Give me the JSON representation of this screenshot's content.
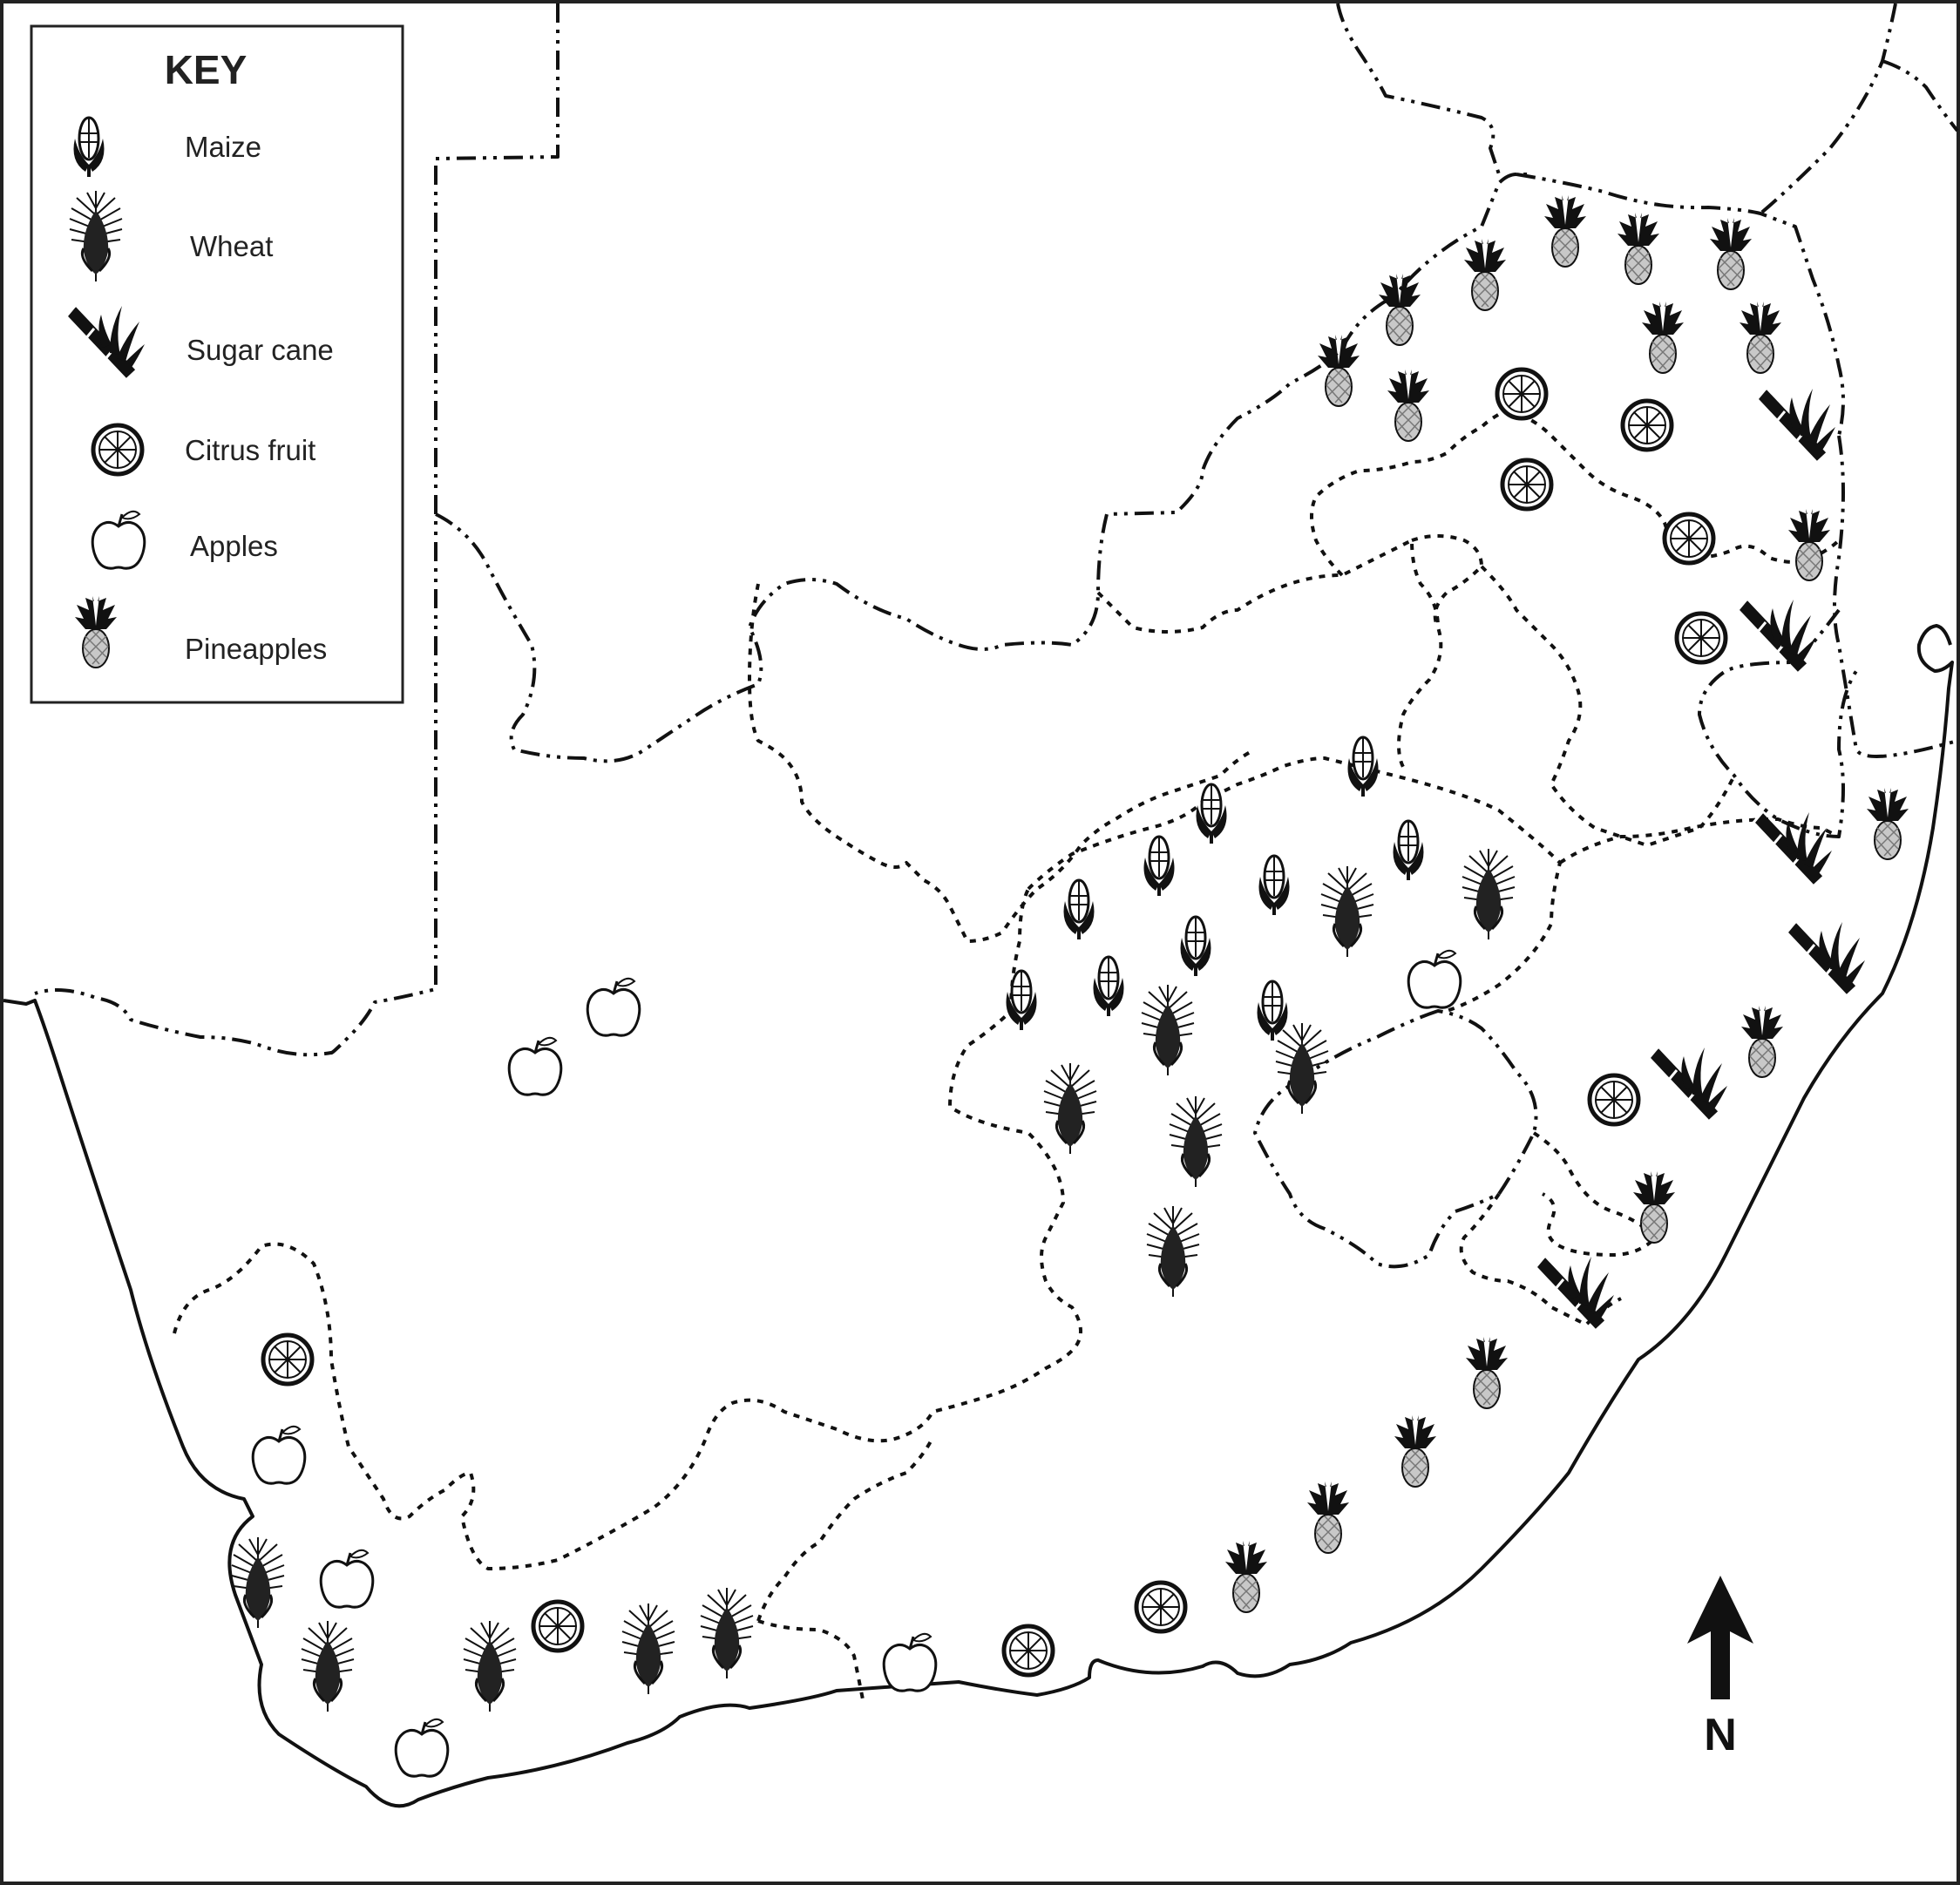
{
  "key": {
    "title": "KEY",
    "items": [
      {
        "id": "maize",
        "label": "Maize",
        "icon": "maize-icon"
      },
      {
        "id": "wheat",
        "label": "Wheat",
        "icon": "wheat-icon"
      },
      {
        "id": "sugarcane",
        "label": "Sugar cane",
        "icon": "sugarcane-icon"
      },
      {
        "id": "citrus",
        "label": "Citrus fruit",
        "icon": "citrus-icon"
      },
      {
        "id": "apple",
        "label": "Apples",
        "icon": "apple-icon"
      },
      {
        "id": "pineapple",
        "label": "Pineapples",
        "icon": "pineapple-icon"
      }
    ]
  },
  "north": {
    "label": "N"
  },
  "colors": {
    "ink": "#111111",
    "background": "#ffffff",
    "pineapple_fruit": "#bbbbbb"
  }
}
